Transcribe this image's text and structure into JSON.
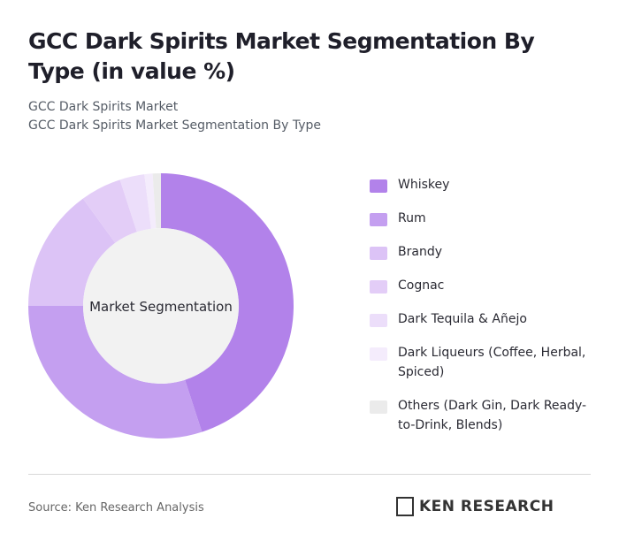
{
  "chart_data": {
    "type": "donut",
    "title": "GCC Dark Spirits Market Segmentation By Type (in value %)",
    "subtitle": [
      "GCC Dark Spirits Market",
      "GCC Dark Spirits Market Segmentation By Type"
    ],
    "center_label": "Market Segmentation",
    "categories": [
      "Whiskey",
      "Rum",
      "Brandy",
      "Cognac",
      "Dark Tequila & Añejo",
      "Dark Liqueurs (Coffee, Herbal, Spiced)",
      "Others (Dark Gin, Dark Ready-to-Drink, Blends)"
    ],
    "values": [
      45,
      30,
      15,
      5,
      3,
      1,
      1
    ],
    "colors": [
      "#b282ea",
      "#c49ff0",
      "#dcc3f6",
      "#e3cdf7",
      "#ecdefa",
      "#f4ecfc",
      "#ebebeb"
    ],
    "source": "Source: Ken Research Analysis",
    "logo": "KEN RESEARCH"
  }
}
